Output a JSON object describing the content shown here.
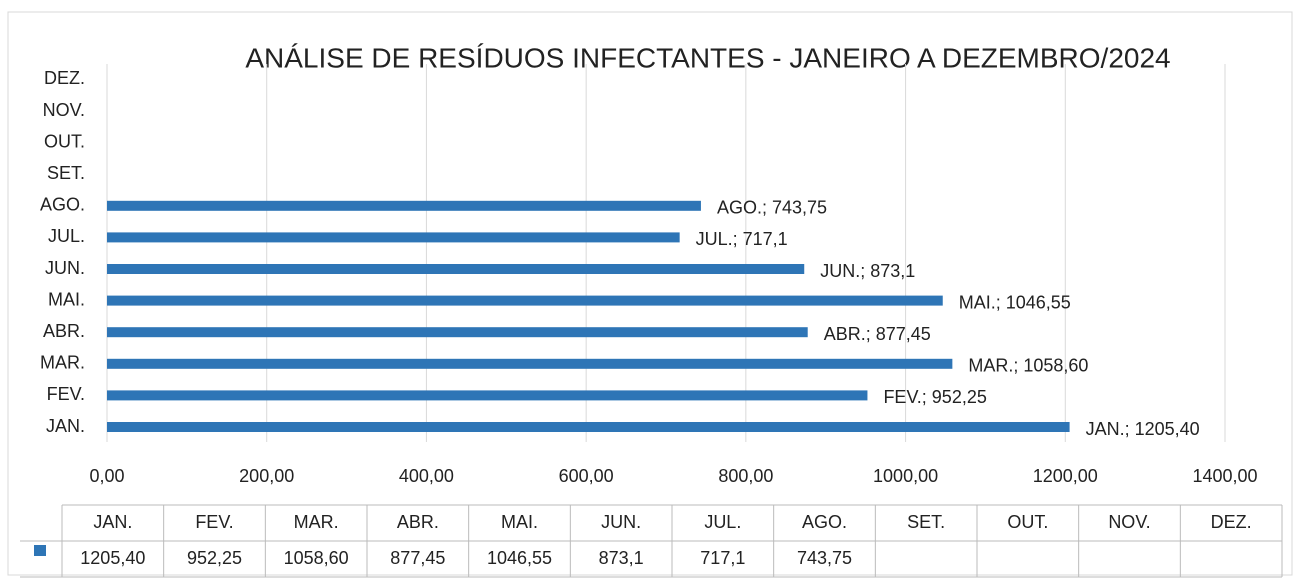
{
  "chart_data": {
    "type": "bar",
    "orientation": "horizontal",
    "title": "ANÁLISE DE RESÍDUOS INFECTANTES - JANEIRO A DEZEMBRO/2024",
    "categories": [
      "JAN.",
      "FEV.",
      "MAR.",
      "ABR.",
      "MAI.",
      "JUN.",
      "JUL.",
      "AGO.",
      "SET.",
      "OUT.",
      "NOV.",
      "DEZ."
    ],
    "values": [
      1205.4,
      952.25,
      1058.6,
      877.45,
      1046.55,
      873.1,
      717.1,
      743.75,
      null,
      null,
      null,
      null
    ],
    "value_labels": [
      "1205,40",
      "952,25",
      "1058,60",
      "877,45",
      "1046,55",
      "873,1",
      "717,1",
      "743,75",
      null,
      null,
      null,
      null
    ],
    "data_labels": [
      "JAN.; 1205,40",
      "FEV.; 952,25",
      "MAR.; 1058,60",
      "ABR.; 877,45",
      "MAI.; 1046,55",
      "JUN.; 873,1",
      "JUL.; 717,1",
      "AGO.; 743,75",
      null,
      null,
      null,
      null
    ],
    "color": "#2e75b6",
    "xlim": [
      0,
      1400
    ],
    "xticks": [
      {
        "value": 0,
        "label": "0,00"
      },
      {
        "value": 200,
        "label": "200,00"
      },
      {
        "value": 400,
        "label": "400,00"
      },
      {
        "value": 600,
        "label": "600,00"
      },
      {
        "value": 800,
        "label": "800,00"
      },
      {
        "value": 1000,
        "label": "1000,00"
      },
      {
        "value": 1200,
        "label": "1200,00"
      },
      {
        "value": 1400,
        "label": "1400,00"
      }
    ],
    "grid": true,
    "data_table": true
  }
}
